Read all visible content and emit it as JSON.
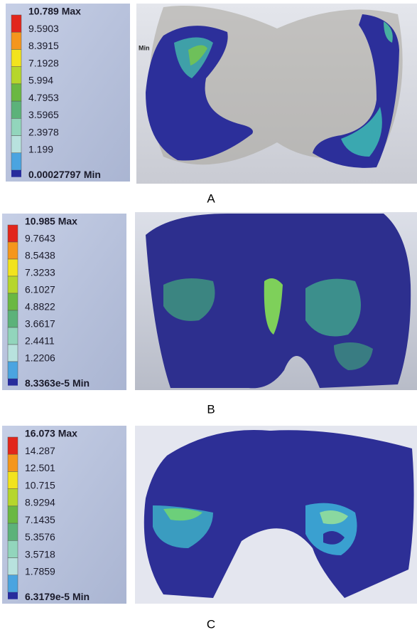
{
  "panels": [
    {
      "label": "A",
      "legend": [
        "10.789 Max",
        "9.5903",
        "8.3915",
        "7.1928",
        "5.994",
        "4.7953",
        "3.5965",
        "2.3978",
        "1.199",
        "0.00027797 Min"
      ],
      "image_text": "Min"
    },
    {
      "label": "B",
      "legend": [
        "10.985 Max",
        "9.7643",
        "8.5438",
        "7.3233",
        "6.1027",
        "4.8822",
        "3.6617",
        "2.4411",
        "1.2206",
        "8.3363e-5 Min"
      ]
    },
    {
      "label": "C",
      "legend": [
        "16.073 Max",
        "14.287",
        "12.501",
        "10.715",
        "8.9294",
        "7.1435",
        "5.3576",
        "3.5718",
        "1.7859",
        "6.3179e-5 Min"
      ]
    }
  ]
}
